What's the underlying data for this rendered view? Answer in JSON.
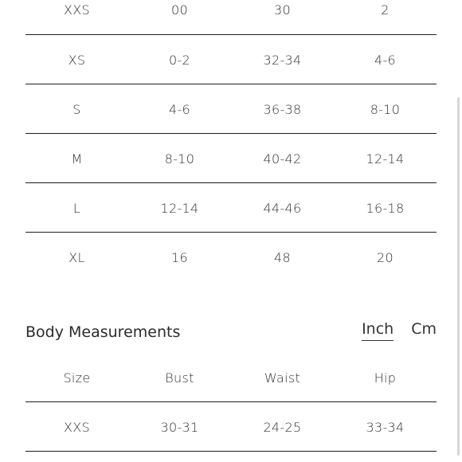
{
  "size_chart": {
    "rows": [
      [
        "XXS",
        "00",
        "30",
        "2"
      ],
      [
        "XS",
        "0-2",
        "32-34",
        "4-6"
      ],
      [
        "S",
        "4-6",
        "36-38",
        "8-10"
      ],
      [
        "M",
        "8-10",
        "40-42",
        "12-14"
      ],
      [
        "L",
        "12-14",
        "44-46",
        "16-18"
      ],
      [
        "XL",
        "16",
        "48",
        "20"
      ]
    ]
  },
  "body_measurements": {
    "title": "Body Measurements",
    "units": [
      "Inch",
      "Cm"
    ],
    "active_unit": "Inch",
    "columns": [
      "Size",
      "Bust",
      "Waist",
      "Hip"
    ],
    "rows": [
      [
        "XXS",
        "30-31",
        "24-25",
        "33-34"
      ]
    ]
  }
}
